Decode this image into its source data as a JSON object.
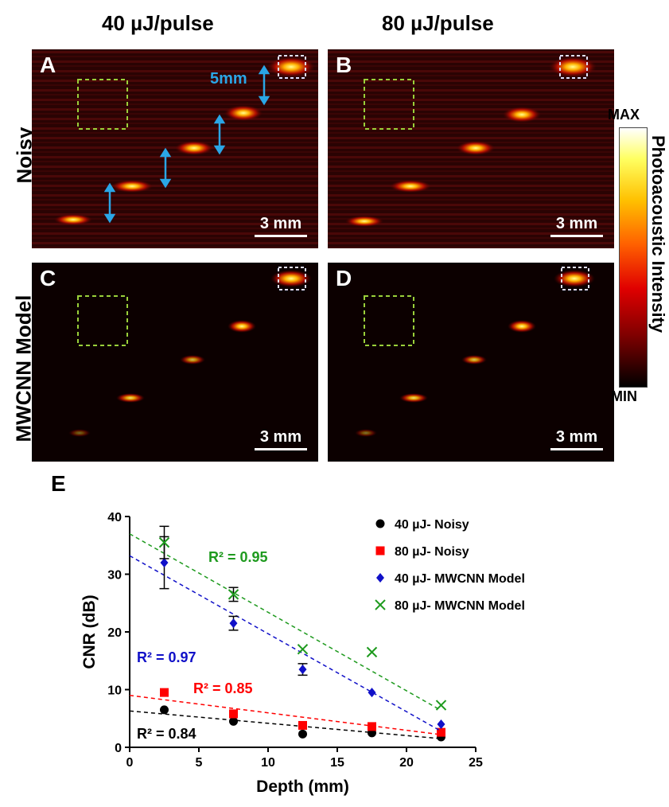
{
  "columns": [
    "40 µJ/pulse",
    "80 µJ/pulse"
  ],
  "rows": [
    "Noisy",
    "MWCNN Model"
  ],
  "panels": [
    {
      "letter": "A",
      "scale": "3 mm"
    },
    {
      "letter": "B",
      "scale": "3 mm"
    },
    {
      "letter": "C",
      "scale": "3 mm"
    },
    {
      "letter": "D",
      "scale": "3 mm"
    }
  ],
  "annotation_spacing": "5mm",
  "colorbar": {
    "max": "MAX",
    "min": "MIN",
    "title": "Photoacoustic Intensity"
  },
  "chart_letter": "E",
  "chart_data": {
    "type": "scatter",
    "xlabel": "Depth (mm)",
    "ylabel": "CNR (dB)",
    "xlim": [
      0,
      25
    ],
    "ylim": [
      0,
      40
    ],
    "xticks": [
      "0",
      "5",
      "10",
      "15",
      "20",
      "25"
    ],
    "yticks": [
      "0",
      "10",
      "20",
      "30",
      "40"
    ],
    "x": [
      2.5,
      7.5,
      12.5,
      17.5,
      22.5
    ],
    "series": [
      {
        "name": "40 µJ- Noisy",
        "color": "#000000",
        "marker": "circle",
        "values": [
          6.5,
          4.5,
          2.3,
          2.5,
          1.8
        ],
        "fit": [
          6.3,
          1.5
        ],
        "r2": "R² = 0.84"
      },
      {
        "name": "80 µJ- Noisy",
        "color": "#ff0000",
        "marker": "square",
        "values": [
          9.5,
          5.8,
          3.8,
          3.6,
          2.6
        ],
        "fit": [
          9.0,
          2.2
        ],
        "r2": "R² = 0.85"
      },
      {
        "name": "40 µJ- MWCNN Model",
        "color": "#1010c8",
        "marker": "diamond",
        "values": [
          32.0,
          21.5,
          13.5,
          9.5,
          4.0
        ],
        "errors": [
          4.5,
          1.2,
          1.0,
          0,
          0
        ],
        "fit": [
          33.2,
          2.8
        ],
        "r2": "R² = 0.97"
      },
      {
        "name": "80 µJ- MWCNN Model",
        "color": "#1e9a1e",
        "marker": "x",
        "values": [
          35.5,
          26.5,
          17.0,
          16.5,
          7.3
        ],
        "errors": [
          2.8,
          1.2,
          0,
          0,
          0
        ],
        "fit": [
          37.0,
          6.4
        ],
        "r2": "R² = 0.95"
      }
    ]
  }
}
